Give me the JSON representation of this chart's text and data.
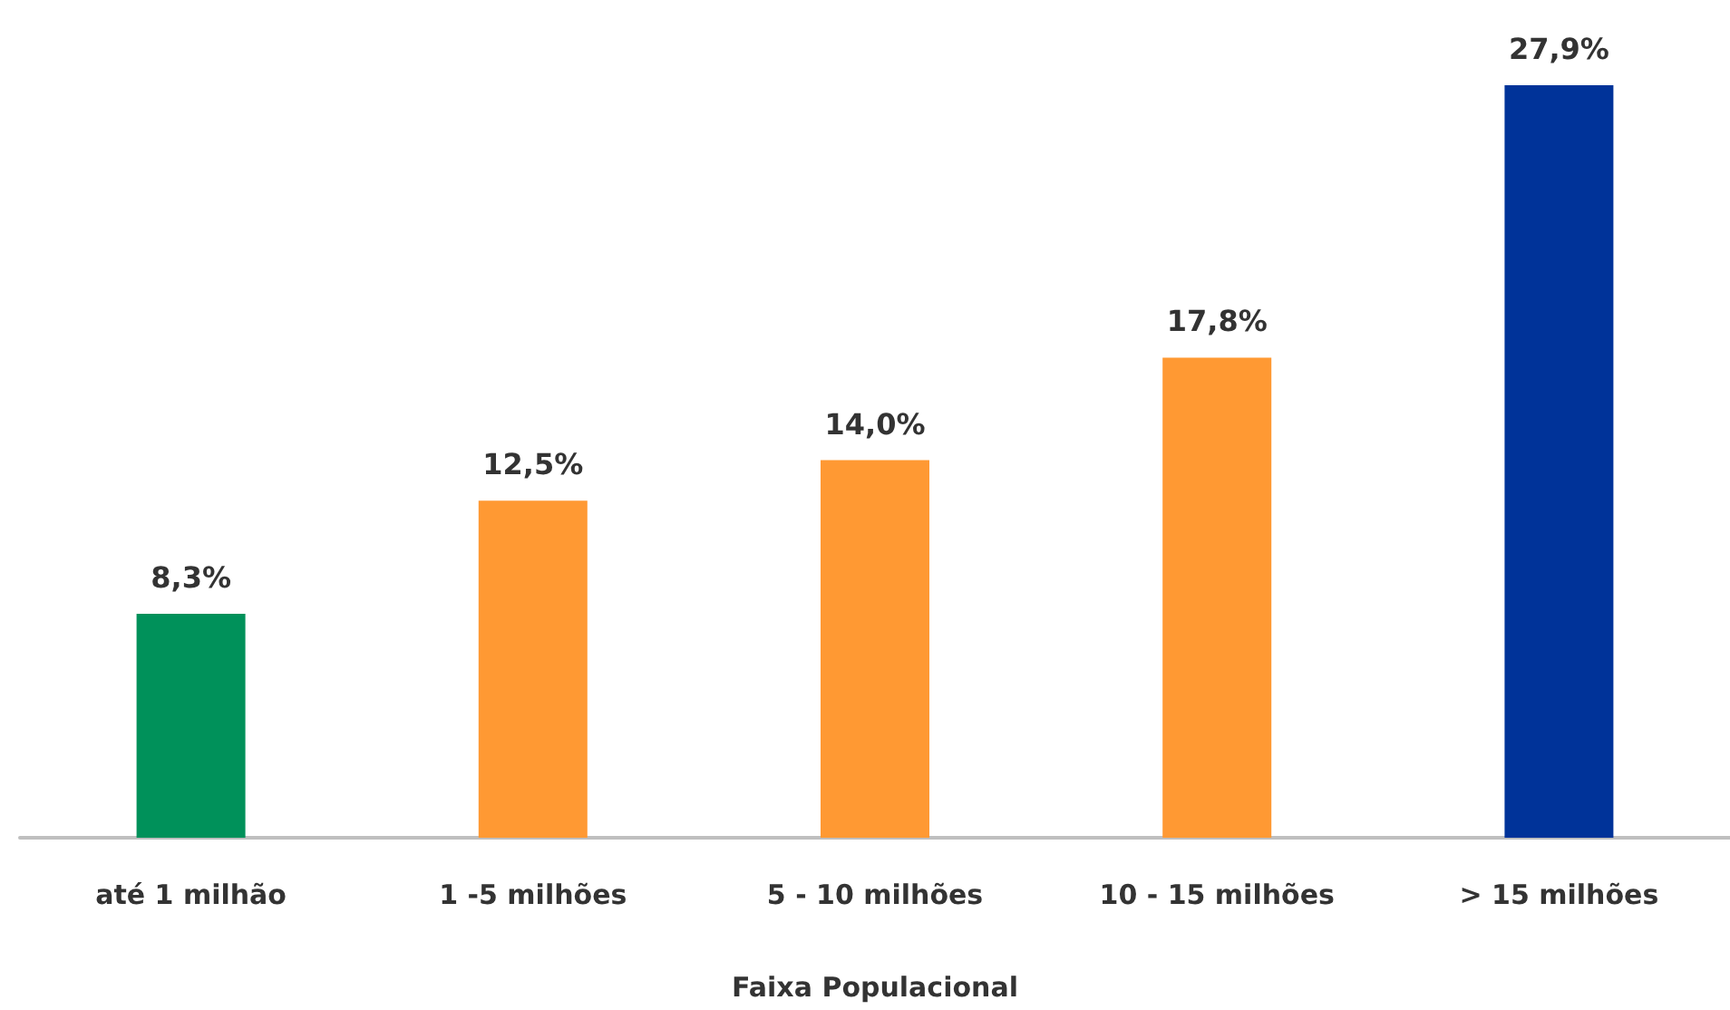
{
  "chart_data": {
    "type": "bar",
    "xlabel": "Faixa Populacional",
    "categories": [
      "até 1 milhão",
      "1 -5 milhões",
      "5 - 10 milhões",
      "10 - 15 milhões",
      "> 15 milhões"
    ],
    "values": [
      8.3,
      12.5,
      14.0,
      17.8,
      27.9
    ],
    "colors": [
      "#00915a",
      "#ff9933",
      "#ff9933",
      "#ff9933",
      "#003399"
    ],
    "value_labels": [
      "8,3%",
      "12,5%",
      "14,0%",
      "17,8%",
      "27,9%"
    ]
  }
}
